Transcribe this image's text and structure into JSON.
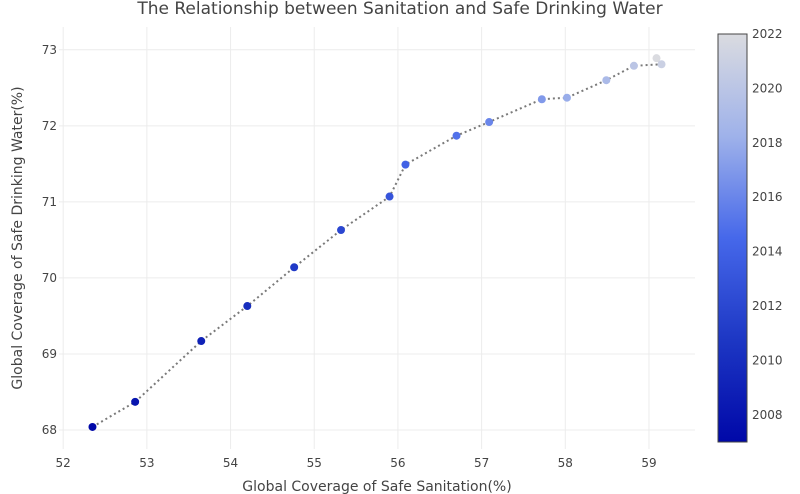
{
  "chart_data": {
    "type": "scatter",
    "title": "The Relationship between Sanitation and Safe Drinking Water",
    "xlabel": "Global Coverage of Safe Sanitation(%)",
    "ylabel": "Global Coverage of Safe Drinking Water(%)",
    "xlim": [
      51.95,
      59.55
    ],
    "ylim": [
      67.75,
      73.3
    ],
    "xticks": [
      52,
      53,
      54,
      55,
      56,
      57,
      58,
      59
    ],
    "yticks": [
      68,
      69,
      70,
      71,
      72,
      73
    ],
    "grid": true,
    "line_style": "dotted",
    "line_color": "#7a7a7a",
    "colorbar": {
      "range": [
        2007,
        2022
      ],
      "ticks": [
        2008,
        2010,
        2012,
        2014,
        2016,
        2018,
        2020,
        2022
      ],
      "colors": [
        "#0008a8",
        "#1d37c4",
        "#4668ea",
        "#9fb2ea",
        "#dadbe0"
      ]
    },
    "points": [
      {
        "year": 2007,
        "x": 52.35,
        "y": 68.04
      },
      {
        "year": 2008,
        "x": 52.86,
        "y": 68.37
      },
      {
        "year": 2009,
        "x": 53.65,
        "y": 69.17
      },
      {
        "year": 2010,
        "x": 54.2,
        "y": 69.63
      },
      {
        "year": 2011,
        "x": 54.76,
        "y": 70.14
      },
      {
        "year": 2012,
        "x": 55.32,
        "y": 70.63
      },
      {
        "year": 2013,
        "x": 55.9,
        "y": 71.07
      },
      {
        "year": 2014,
        "x": 56.09,
        "y": 71.49
      },
      {
        "year": 2015,
        "x": 56.7,
        "y": 71.87
      },
      {
        "year": 2016,
        "x": 57.09,
        "y": 72.05
      },
      {
        "year": 2017,
        "x": 57.72,
        "y": 72.35
      },
      {
        "year": 2018,
        "x": 58.02,
        "y": 72.37
      },
      {
        "year": 2019,
        "x": 58.49,
        "y": 72.6
      },
      {
        "year": 2020,
        "x": 58.82,
        "y": 72.79
      },
      {
        "year": 2021,
        "x": 59.15,
        "y": 72.81
      },
      {
        "year": 2022,
        "x": 59.09,
        "y": 72.89
      }
    ]
  }
}
